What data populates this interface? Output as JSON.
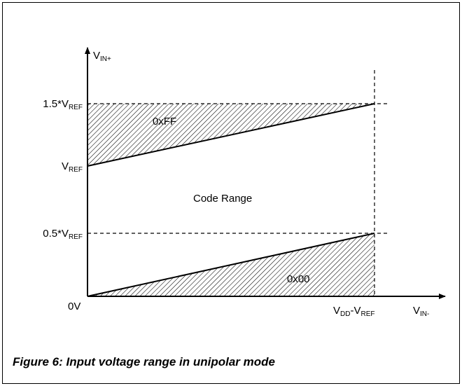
{
  "y_axis_title": [
    "V",
    "IN+"
  ],
  "x_axis_title": [
    "V",
    "IN-"
  ],
  "y_labels": [
    [
      "1.5*V",
      "REF"
    ],
    [
      "V",
      "REF"
    ],
    [
      "0.5*V",
      "REF"
    ],
    [
      "0V"
    ]
  ],
  "x_label": [
    "V",
    "DD",
    "-V",
    "REF"
  ],
  "regions": [
    "0xFF",
    "Code Range",
    "0x00"
  ],
  "caption": "Figure 6: Input voltage range in unipolar mode"
}
